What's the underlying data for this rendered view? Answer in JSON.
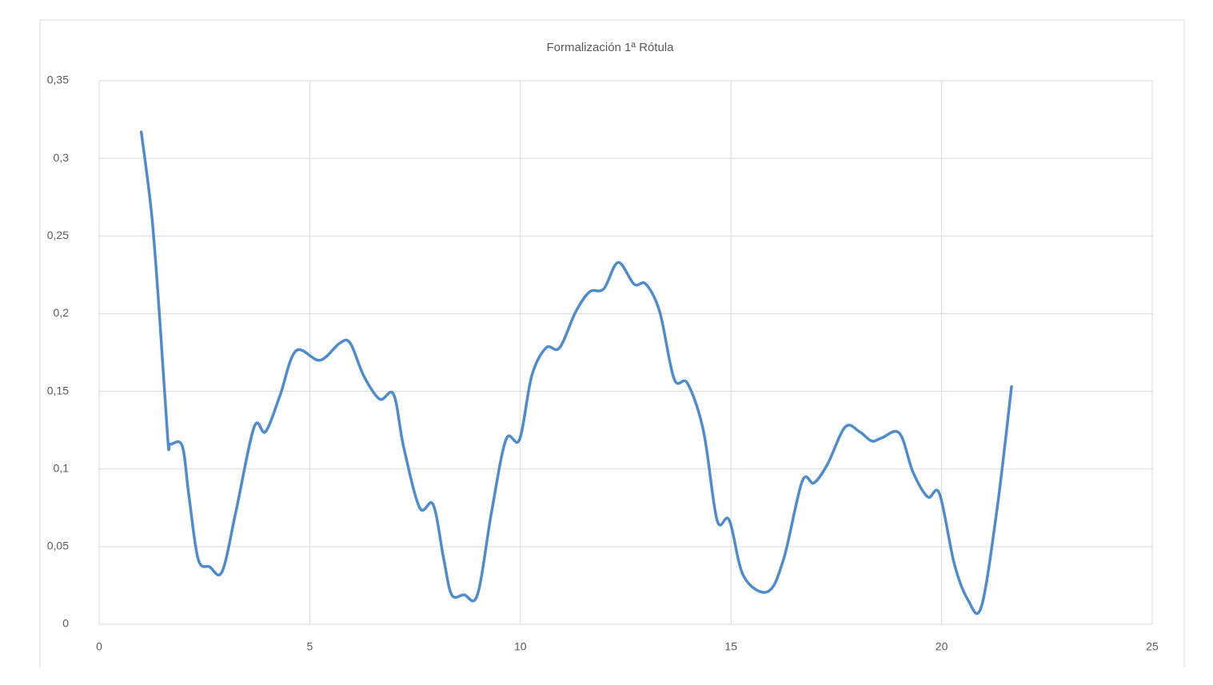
{
  "chart_data": {
    "type": "line",
    "title": "Formalización 1ª Rótula",
    "x": [
      1.0,
      1.25,
      1.44,
      1.63,
      1.69,
      1.97,
      2.13,
      2.35,
      2.62,
      2.92,
      3.25,
      3.68,
      3.95,
      4.29,
      4.67,
      5.24,
      5.71,
      5.96,
      6.28,
      6.66,
      6.99,
      7.23,
      7.61,
      7.93,
      8.18,
      8.37,
      8.66,
      8.98,
      9.32,
      9.66,
      9.98,
      10.27,
      10.61,
      10.93,
      11.31,
      11.64,
      11.98,
      12.32,
      12.7,
      12.98,
      13.31,
      13.65,
      13.97,
      14.35,
      14.67,
      14.96,
      15.3,
      15.87,
      16.25,
      16.69,
      16.97,
      17.29,
      17.71,
      18.05,
      18.34,
      18.58,
      19.0,
      19.32,
      19.67,
      19.95,
      20.3,
      20.62,
      20.94,
      21.32,
      21.66
    ],
    "series": [
      {
        "color": "#4f8cc9",
        "values": [
          0.317,
          0.263,
          0.196,
          0.119,
          0.116,
          0.115,
          0.083,
          0.042,
          0.037,
          0.034,
          0.073,
          0.127,
          0.124,
          0.147,
          0.176,
          0.17,
          0.181,
          0.181,
          0.16,
          0.145,
          0.148,
          0.114,
          0.075,
          0.077,
          0.042,
          0.019,
          0.019,
          0.019,
          0.073,
          0.119,
          0.119,
          0.16,
          0.178,
          0.178,
          0.201,
          0.214,
          0.216,
          0.233,
          0.219,
          0.219,
          0.201,
          0.158,
          0.155,
          0.124,
          0.067,
          0.067,
          0.031,
          0.021,
          0.042,
          0.092,
          0.091,
          0.103,
          0.127,
          0.124,
          0.118,
          0.12,
          0.123,
          0.098,
          0.082,
          0.084,
          0.039,
          0.016,
          0.011,
          0.075,
          0.153
        ]
      }
    ],
    "xlim": [
      0,
      25
    ],
    "xticks": [
      0,
      5,
      10,
      15,
      20,
      25
    ],
    "ylim": [
      0,
      0.35
    ],
    "yticks": [
      0,
      {
        "value": 0.05,
        "label": "0,05"
      },
      {
        "value": 0.1,
        "label": "0,1"
      },
      {
        "value": 0.15,
        "label": "0,15"
      },
      {
        "value": 0.2,
        "label": "0,2"
      },
      {
        "value": 0.25,
        "label": "0,25"
      },
      {
        "value": 0.3,
        "label": "0,3"
      },
      {
        "value": 0.35,
        "label": "0,35"
      }
    ],
    "grid": true,
    "smooth": true
  }
}
